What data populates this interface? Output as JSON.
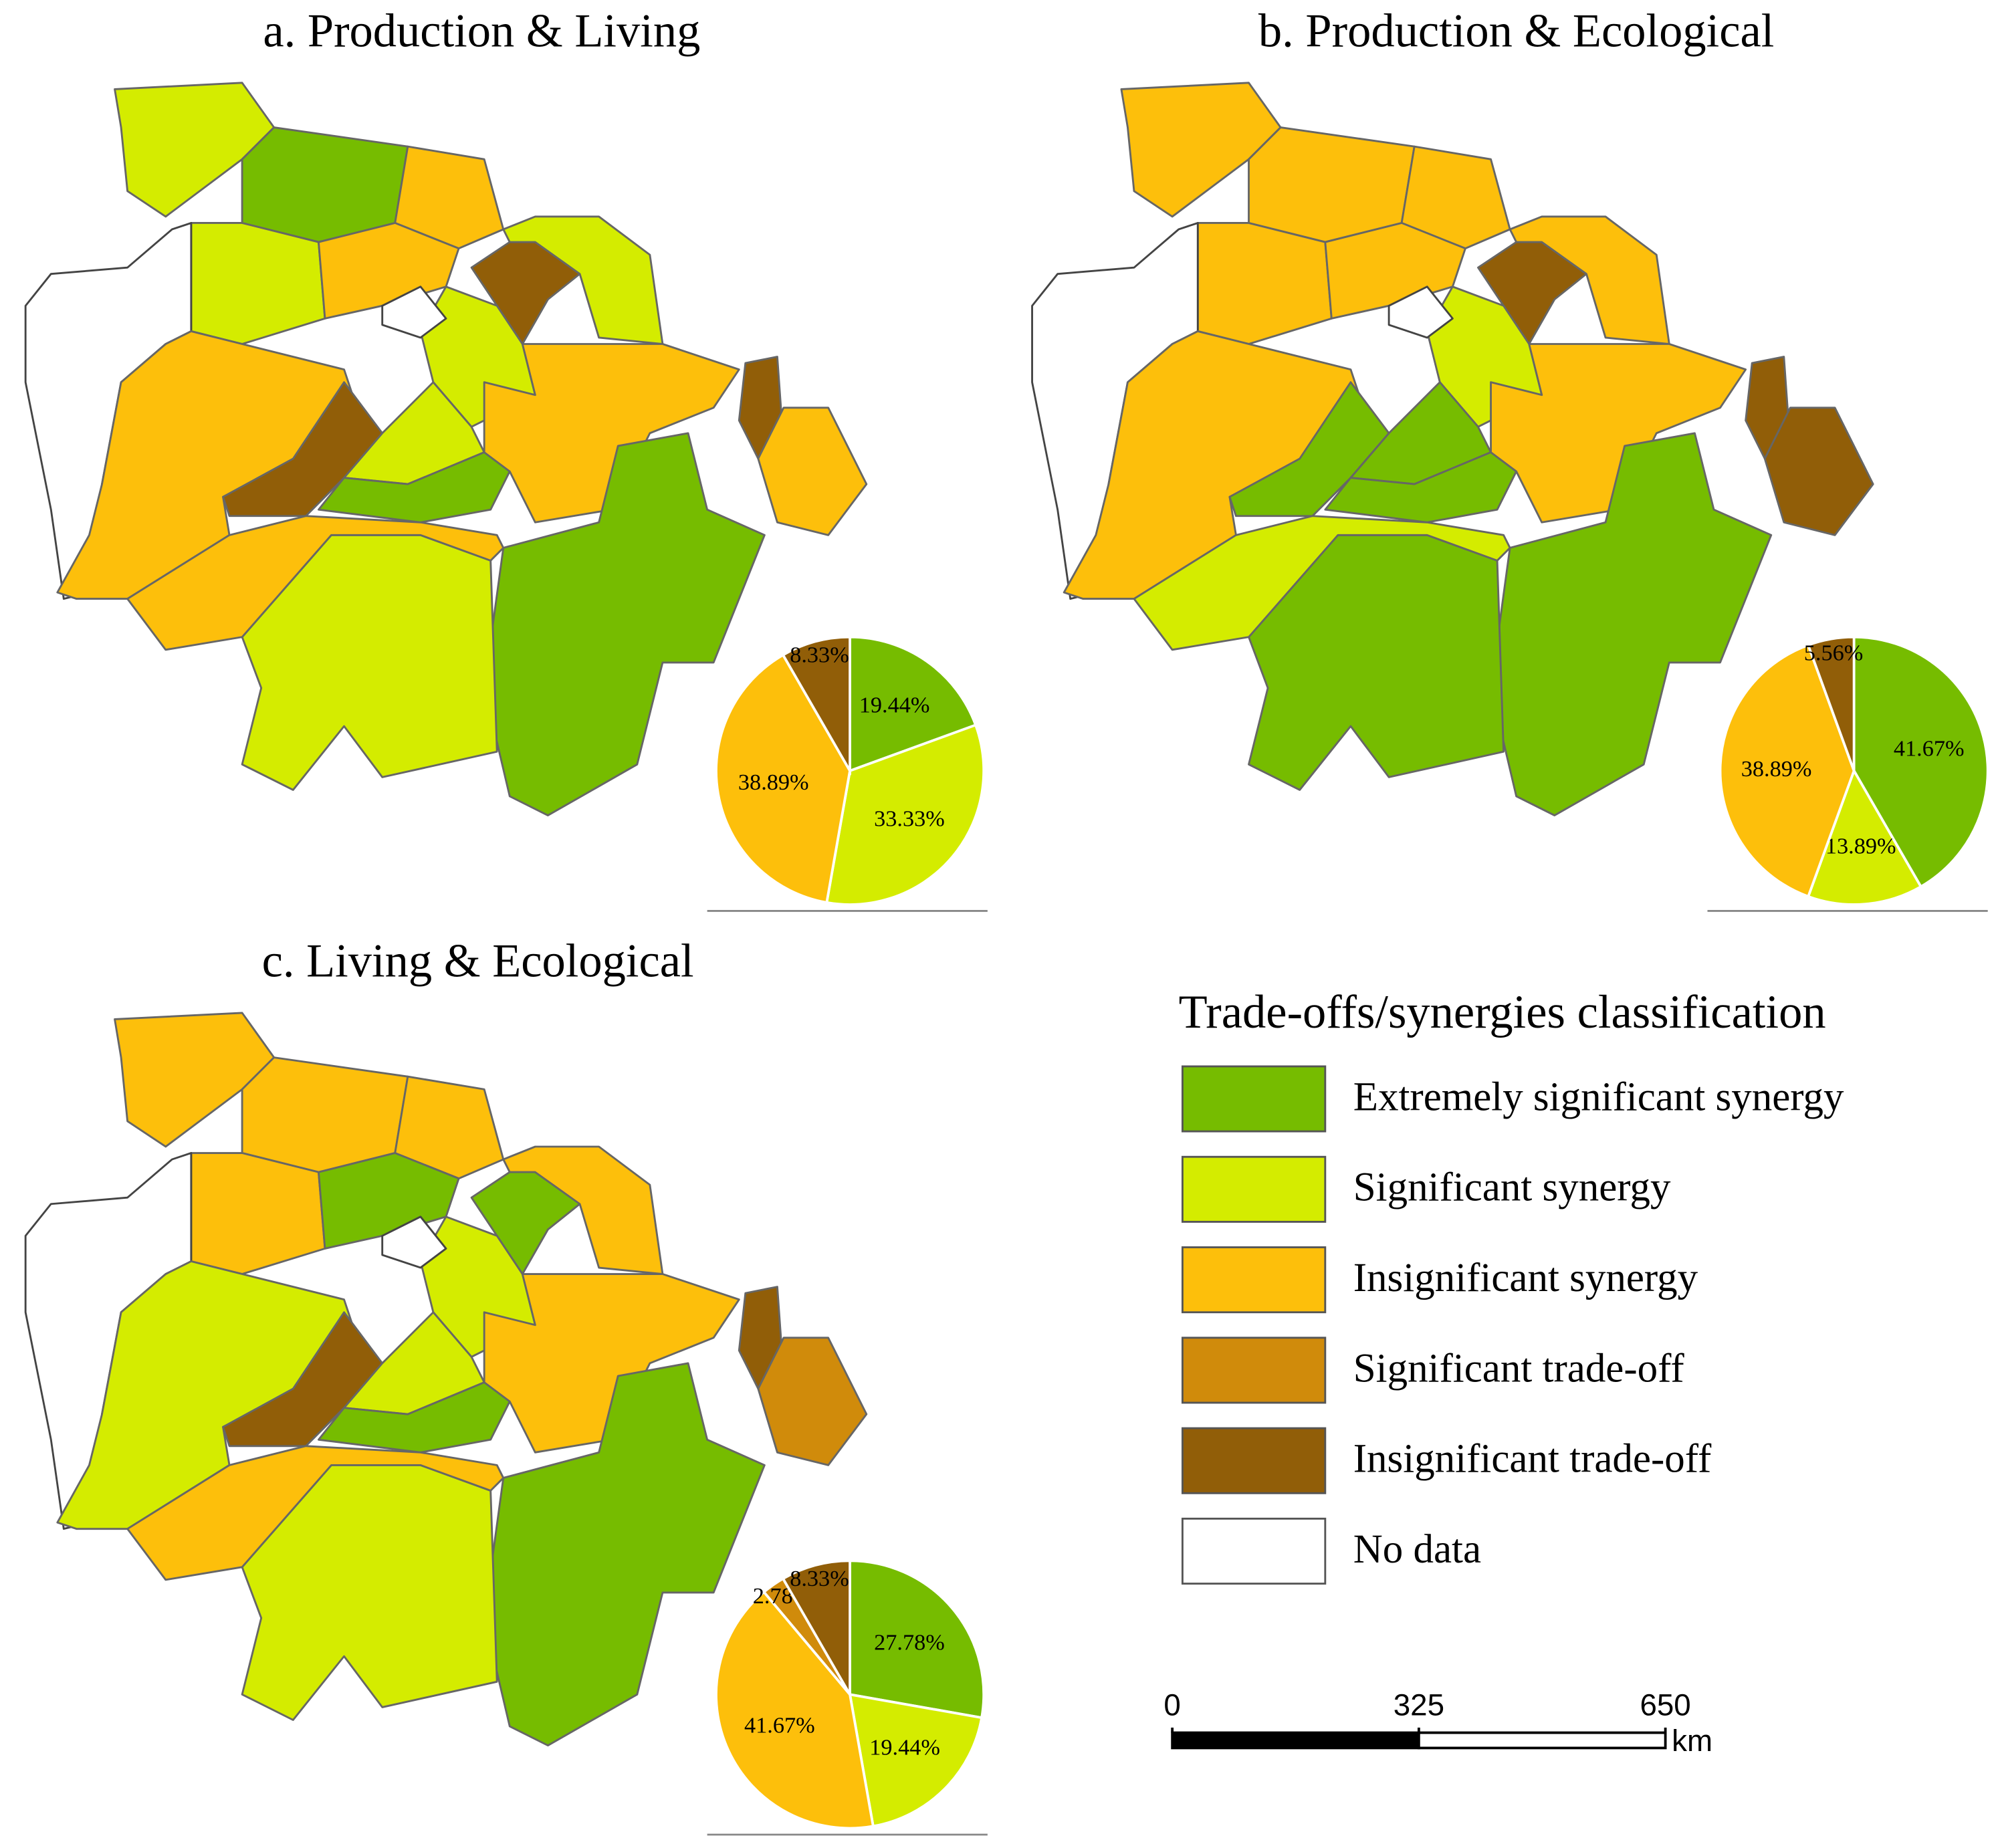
{
  "chart_data": [
    {
      "type": "pie",
      "title": "a. Production & Living",
      "values": [
        19.44,
        33.33,
        38.89,
        8.33
      ],
      "value_labels": [
        "19.44%",
        "33.33%",
        "38.89%",
        "8.33%"
      ],
      "colors": [
        "#76bc00",
        "#d4ec00",
        "#fdbf0b",
        "#915e08"
      ]
    },
    {
      "type": "pie",
      "title": "b. Production & Ecological",
      "values": [
        41.67,
        13.89,
        38.89,
        5.56
      ],
      "value_labels": [
        "41.67%",
        "13.89%",
        "38.89%",
        "5.56%"
      ],
      "colors": [
        "#76bc00",
        "#d4ec00",
        "#fdbf0b",
        "#915e08"
      ]
    },
    {
      "type": "pie",
      "title": "c. Living & Ecological",
      "values": [
        27.78,
        19.44,
        41.67,
        2.78,
        8.33
      ],
      "value_labels": [
        "27.78%",
        "19.44%",
        "41.67%",
        "2.78%",
        "8.33%"
      ],
      "colors": [
        "#76bc00",
        "#d4ec00",
        "#fdbf0b",
        "#d08b0b",
        "#915e08"
      ]
    }
  ],
  "legend": {
    "title": "Trade-offs/synergies classification",
    "items": [
      {
        "label": "Extremely significant synergy",
        "color": "#76bc00"
      },
      {
        "label": "Significant synergy",
        "color": "#d4ec00"
      },
      {
        "label": "Insignificant synergy",
        "color": "#fdbf0b"
      },
      {
        "label": "Significant trade-off",
        "color": "#d08b0b"
      },
      {
        "label": "Insignificant trade-off",
        "color": "#915e08"
      },
      {
        "label": "No data",
        "color": "#ffffff"
      }
    ]
  },
  "scale_bar": {
    "ticks": [
      0,
      325,
      650
    ],
    "unit": "km"
  }
}
